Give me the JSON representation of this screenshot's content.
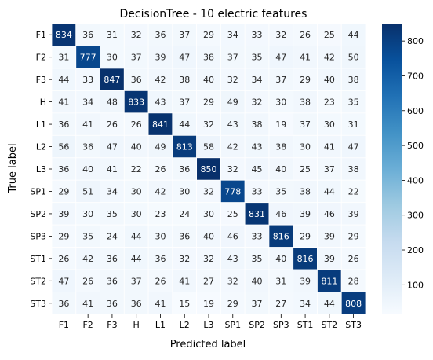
{
  "chart_data": {
    "type": "heatmap",
    "title": "DecisionTree - 10 electric features",
    "xlabel": "Predicted label",
    "ylabel": "True label",
    "x_categories": [
      "F1",
      "F2",
      "F3",
      "H",
      "L1",
      "L2",
      "L3",
      "SP1",
      "SP2",
      "SP3",
      "ST1",
      "ST2",
      "ST3"
    ],
    "y_categories": [
      "F1",
      "F2",
      "F3",
      "H",
      "L1",
      "L2",
      "L3",
      "SP1",
      "SP2",
      "SP3",
      "ST1",
      "ST2",
      "ST3"
    ],
    "values": [
      [
        834,
        36,
        31,
        32,
        36,
        37,
        29,
        34,
        33,
        32,
        26,
        25,
        44
      ],
      [
        31,
        777,
        30,
        37,
        39,
        47,
        38,
        37,
        35,
        47,
        41,
        42,
        50
      ],
      [
        44,
        33,
        847,
        36,
        42,
        38,
        40,
        32,
        34,
        37,
        29,
        40,
        38
      ],
      [
        41,
        34,
        48,
        833,
        43,
        37,
        29,
        49,
        32,
        30,
        38,
        23,
        35
      ],
      [
        36,
        41,
        26,
        26,
        841,
        44,
        32,
        43,
        38,
        19,
        37,
        30,
        31
      ],
      [
        56,
        36,
        47,
        40,
        49,
        813,
        58,
        42,
        43,
        38,
        30,
        41,
        47
      ],
      [
        36,
        40,
        41,
        22,
        26,
        36,
        850,
        32,
        45,
        40,
        25,
        37,
        38
      ],
      [
        29,
        51,
        34,
        30,
        42,
        30,
        32,
        778,
        33,
        35,
        38,
        44,
        22
      ],
      [
        39,
        30,
        35,
        30,
        23,
        24,
        30,
        25,
        831,
        46,
        39,
        46,
        39
      ],
      [
        29,
        35,
        24,
        44,
        30,
        36,
        40,
        46,
        33,
        816,
        29,
        39,
        29
      ],
      [
        26,
        42,
        36,
        44,
        36,
        32,
        32,
        43,
        35,
        40,
        816,
        39,
        26
      ],
      [
        47,
        26,
        36,
        37,
        26,
        41,
        27,
        32,
        40,
        31,
        39,
        811,
        28
      ],
      [
        36,
        41,
        36,
        36,
        41,
        15,
        19,
        29,
        37,
        27,
        34,
        44,
        808
      ]
    ],
    "colormap": "Blues",
    "vmin": 15,
    "vmax": 850,
    "colorbar_ticks": [
      100,
      200,
      300,
      400,
      500,
      600,
      700,
      800
    ],
    "grid": false,
    "legend": "colorbar-right"
  }
}
